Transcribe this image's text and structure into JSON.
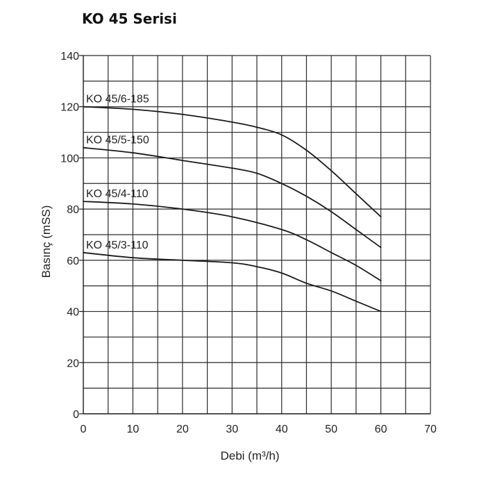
{
  "chart_data": {
    "type": "line",
    "title": "KO 45 Serisi",
    "xlabel": "Debi (m³/h)",
    "ylabel": "Basınç (mSS)",
    "xlim": [
      0,
      70
    ],
    "ylim": [
      0,
      140
    ],
    "xticks": [
      0,
      10,
      20,
      30,
      40,
      50,
      60,
      70
    ],
    "yticks": [
      0,
      20,
      40,
      60,
      80,
      100,
      120,
      140
    ],
    "x_minor_step": 5,
    "y_minor_step": 10,
    "grid": true,
    "line_color": "#1a1a1a",
    "series": [
      {
        "name": "KO 45/6-185",
        "x": [
          0,
          10,
          20,
          30,
          35,
          40,
          45,
          50,
          55,
          60
        ],
        "y": [
          120,
          119,
          117,
          114,
          112,
          109,
          103,
          95,
          86,
          77
        ]
      },
      {
        "name": "KO 45/5-150",
        "x": [
          0,
          10,
          20,
          30,
          35,
          40,
          45,
          50,
          55,
          60
        ],
        "y": [
          104,
          102,
          99,
          96,
          94,
          90,
          85,
          79,
          72,
          65
        ]
      },
      {
        "name": "KO 45/4-110",
        "x": [
          0,
          10,
          20,
          30,
          40,
          45,
          50,
          55,
          60
        ],
        "y": [
          83,
          82,
          80,
          77,
          72,
          68,
          63,
          58,
          52
        ]
      },
      {
        "name": "KO 45/3-110",
        "x": [
          0,
          10,
          20,
          30,
          35,
          40,
          45,
          50,
          55,
          60
        ],
        "y": [
          63,
          61,
          60,
          59,
          57.5,
          55,
          51,
          48,
          44,
          40
        ]
      }
    ]
  }
}
